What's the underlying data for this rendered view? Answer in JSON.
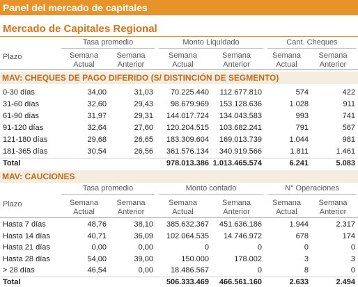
{
  "header": {
    "title": "Panel del mercado de capitales"
  },
  "subtitle": "Mercado de Capitales Regional",
  "sections": [
    {
      "title": "MAV: CHEQUES DE PAGO DIFERIDO (S/ DISTINCIÓN DE SEGMENTO)",
      "row_label_header": "Plazo",
      "groups": [
        "Tasa promedio",
        "Monto Liquidado",
        "Cant. Cheques"
      ],
      "subheaders": [
        "Semana Actual",
        "Semana Anterior",
        "Semana Actual",
        "Semana Anterior",
        "Semana Actual",
        "Semana Anterior"
      ],
      "rows": [
        {
          "label": "0-30 días",
          "cells": [
            "34,00",
            "31,03",
            "70.225.440",
            "112.677.810",
            "574",
            "422"
          ]
        },
        {
          "label": "31-60 días",
          "cells": [
            "32,60",
            "29,43",
            "98.679.969",
            "153.128.636",
            "1.028",
            "911"
          ]
        },
        {
          "label": "61-90 días",
          "cells": [
            "31,97",
            "29,31",
            "144.017.724",
            "134.043.583",
            "993",
            "741"
          ]
        },
        {
          "label": "91-120 días",
          "cells": [
            "32,64",
            "27,60",
            "120.204.515",
            "103.682.241",
            "791",
            "567"
          ]
        },
        {
          "label": "121-180 días",
          "cells": [
            "29,68",
            "26,65",
            "183.309.604",
            "169.013.739",
            "1.044",
            "981"
          ]
        },
        {
          "label": "181-365 días",
          "cells": [
            "30,54",
            "26,56",
            "361.576.134",
            "340.919.566",
            "1.811",
            "1.461"
          ]
        },
        {
          "label": "Total",
          "cells": [
            null,
            null,
            "978.013.386",
            "1.013.465.574",
            "6.241",
            "5.083"
          ]
        }
      ]
    },
    {
      "title": "MAV: CAUCIONES",
      "row_label_header": "Plazo",
      "groups": [
        "Tasa promedio",
        "Monto contado",
        "N° Operaciones"
      ],
      "subheaders": [
        "Semana Actual",
        "Semana Anterior",
        "Semana Actual",
        "Semana Anterior",
        "Semana Actual",
        "Semana Anterior"
      ],
      "rows": [
        {
          "label": "Hasta 7 días",
          "cells": [
            "48,76",
            "38,10",
            "385.632.367",
            "451.636.186",
            "1.944",
            "2.317"
          ]
        },
        {
          "label": "Hasta 14 días",
          "cells": [
            "40,71",
            "36,09",
            "102.064.535",
            "14.746.972",
            "678",
            "174"
          ]
        },
        {
          "label": "Hasta 21 días",
          "cells": [
            "0,00",
            "0,00",
            "0",
            "0",
            "0",
            "0"
          ]
        },
        {
          "label": "Hasta 28 días",
          "cells": [
            "54,00",
            "39,00",
            "150.000",
            "178.002",
            "3",
            "3"
          ]
        },
        {
          "label": "> 28 días",
          "cells": [
            "46,54",
            "0,00",
            "18.486.567",
            "0",
            "8",
            "0"
          ]
        },
        {
          "label": "Total",
          "cells": [
            null,
            null,
            "506.333.469",
            "466.561.160",
            "2.633",
            "2.494"
          ]
        }
      ]
    }
  ]
}
